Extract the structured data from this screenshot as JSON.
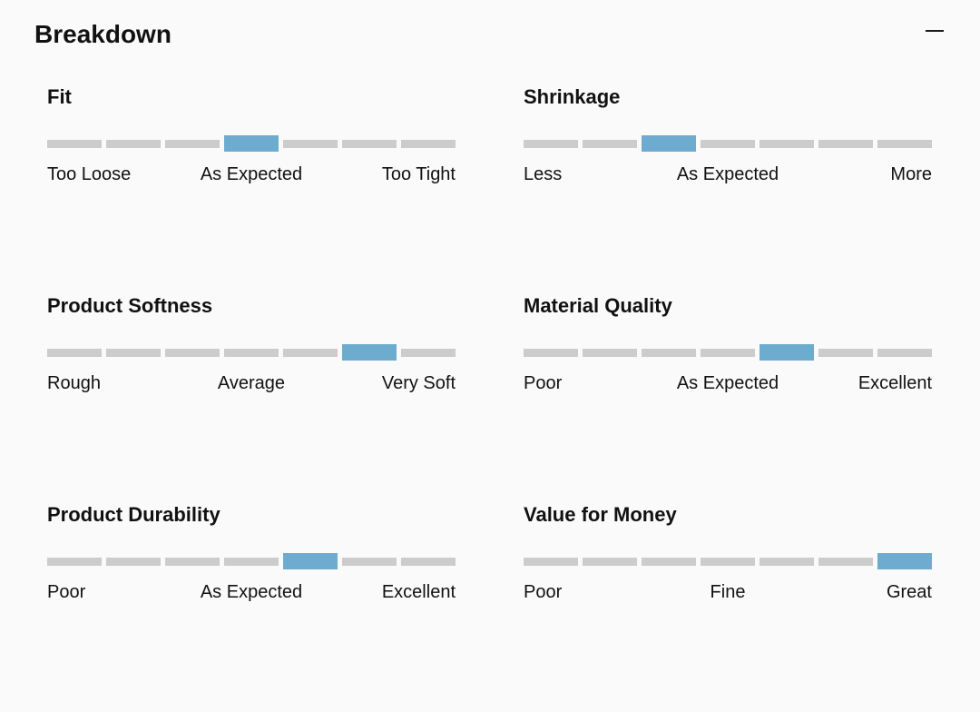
{
  "header": {
    "title": "Breakdown"
  },
  "controls": {
    "collapse_label": "Collapse section"
  },
  "colors": {
    "background": "#fafafa",
    "text": "#111111",
    "segment_active": "#6dacce",
    "segment_inactive": "#cccccc"
  },
  "rating_scale": {
    "segments": 7
  },
  "metrics": [
    {
      "title": "Fit",
      "selected_index": 3,
      "labels": {
        "left": "Too Loose",
        "center": "As Expected",
        "right": "Too Tight"
      }
    },
    {
      "title": "Shrinkage",
      "selected_index": 2,
      "labels": {
        "left": "Less",
        "center": "As Expected",
        "right": "More"
      }
    },
    {
      "title": "Product Softness",
      "selected_index": 5,
      "labels": {
        "left": "Rough",
        "center": "Average",
        "right": "Very Soft"
      }
    },
    {
      "title": "Material Quality",
      "selected_index": 4,
      "labels": {
        "left": "Poor",
        "center": "As Expected",
        "right": "Excellent"
      }
    },
    {
      "title": "Product Durability",
      "selected_index": 4,
      "labels": {
        "left": "Poor",
        "center": "As Expected",
        "right": "Excellent"
      }
    },
    {
      "title": "Value for Money",
      "selected_index": 6,
      "labels": {
        "left": "Poor",
        "center": "Fine",
        "right": "Great"
      }
    }
  ]
}
